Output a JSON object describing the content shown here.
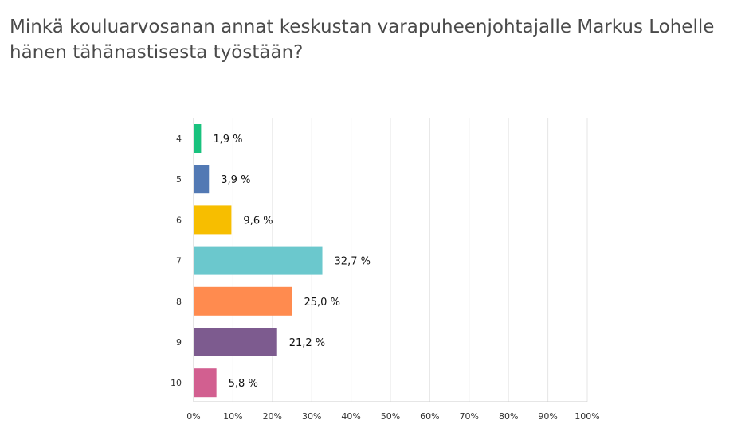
{
  "title": "Minkä kouluarvosanan annat keskustan varapuheenjohtajalle Markus Lohelle hänen tähänastisesta työstään?",
  "chart_data": {
    "type": "bar",
    "orientation": "horizontal",
    "categories": [
      "4",
      "5",
      "6",
      "7",
      "8",
      "9",
      "10"
    ],
    "values": [
      1.9,
      3.9,
      9.6,
      32.7,
      25.0,
      21.2,
      5.8
    ],
    "value_labels": [
      "1,9 %",
      "3,9 %",
      "9,6 %",
      "32,7 %",
      "25,0 %",
      "21,2 %",
      "5,8 %"
    ],
    "colors": [
      "#19c27e",
      "#5279b4",
      "#f7be00",
      "#6bc8cd",
      "#ff8b4f",
      "#7d5b8f",
      "#d25f90"
    ],
    "x_ticks": [
      "0%",
      "10%",
      "20%",
      "30%",
      "40%",
      "50%",
      "60%",
      "70%",
      "80%",
      "90%",
      "100%"
    ],
    "xlim": [
      0,
      100
    ],
    "grid": true
  }
}
